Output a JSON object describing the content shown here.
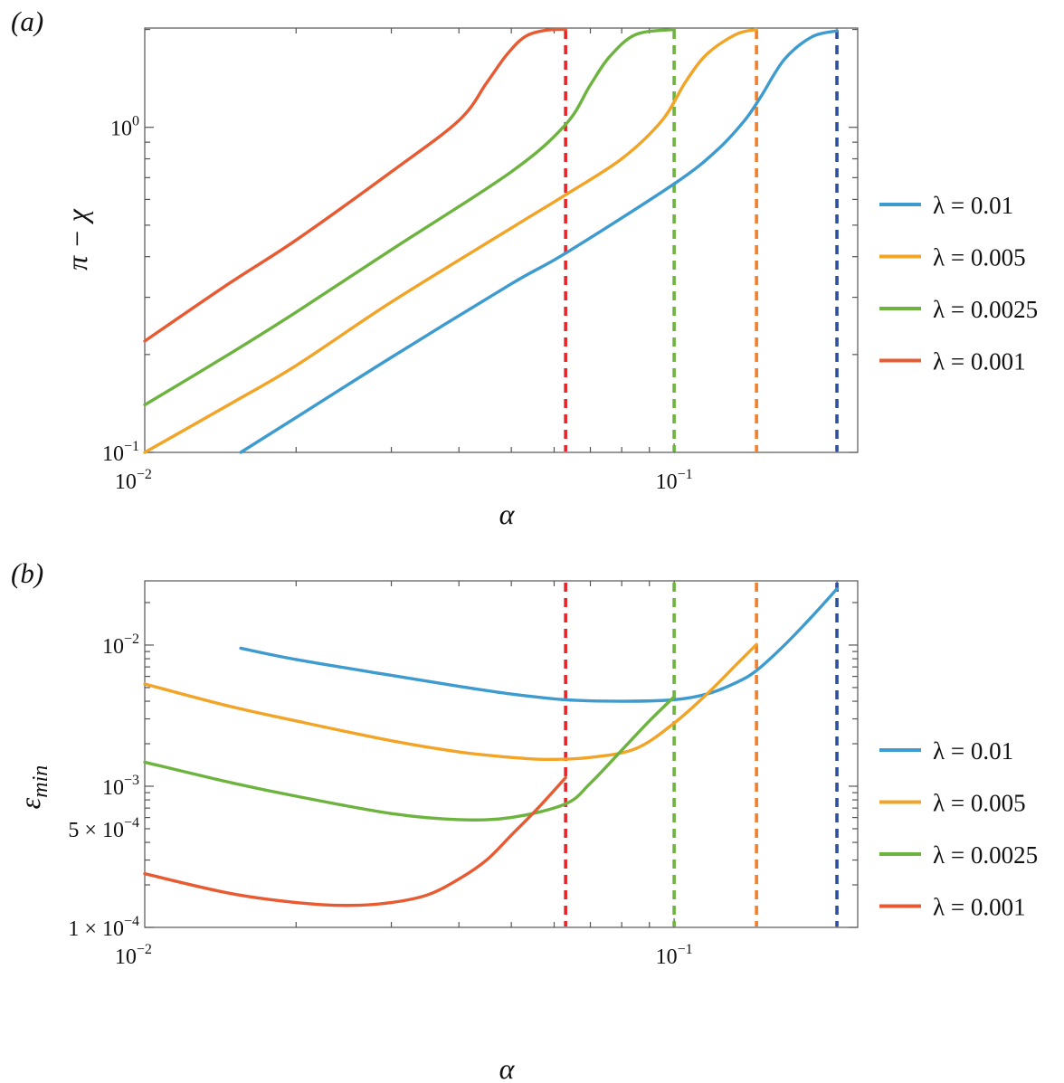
{
  "chart_data": [
    {
      "panel": "(a)",
      "type": "line",
      "xlabel": "α",
      "ylabel": "π − χ",
      "xscale": "log",
      "yscale": "log",
      "xlim": [
        0.0105,
        0.2185
      ],
      "ylim": [
        0.1,
        2.02
      ],
      "xticks": [
        {
          "value": 0.01,
          "label": "10",
          "exp": "−2"
        },
        {
          "value": 0.1,
          "label": "10",
          "exp": "−1"
        }
      ],
      "yticks": [
        {
          "value": 0.1,
          "label": "10",
          "exp": "−1"
        },
        {
          "value": 1.0,
          "label": "10",
          "exp": "0"
        }
      ],
      "legend": "right",
      "series": [
        {
          "name": "λ = 0.01",
          "color": "#3d9bcf",
          "x": [
            0.0158,
            0.02,
            0.03,
            0.05,
            0.063,
            0.1,
            0.12,
            0.135,
            0.145,
            0.16,
            0.18,
            0.2
          ],
          "y": [
            0.1,
            0.128,
            0.196,
            0.33,
            0.41,
            0.67,
            0.85,
            1.05,
            1.25,
            1.62,
            1.9,
            1.98
          ]
        },
        {
          "name": "λ = 0.005",
          "color": "#f2a427",
          "x": [
            0.0105,
            0.015,
            0.02,
            0.03,
            0.05,
            0.063,
            0.08,
            0.095,
            0.105,
            0.115,
            0.13,
            0.142
          ],
          "y": [
            0.1,
            0.14,
            0.185,
            0.29,
            0.49,
            0.62,
            0.8,
            1.05,
            1.38,
            1.68,
            1.93,
            2.0
          ]
        },
        {
          "name": "λ = 0.0025",
          "color": "#6db33f",
          "x": [
            0.0105,
            0.015,
            0.02,
            0.03,
            0.05,
            0.063,
            0.07,
            0.076,
            0.085,
            0.1
          ],
          "y": [
            0.14,
            0.2,
            0.27,
            0.42,
            0.73,
            1.02,
            1.35,
            1.65,
            1.93,
            2.0
          ]
        },
        {
          "name": "λ = 0.001",
          "color": "#e75a32",
          "x": [
            0.0105,
            0.015,
            0.02,
            0.03,
            0.04,
            0.045,
            0.049,
            0.053,
            0.058,
            0.063
          ],
          "y": [
            0.22,
            0.33,
            0.45,
            0.73,
            1.05,
            1.37,
            1.67,
            1.9,
            1.99,
            2.0
          ]
        }
      ],
      "vlines": [
        {
          "x": 0.063,
          "color": "#e6262b"
        },
        {
          "x": 0.1,
          "color": "#6db33f"
        },
        {
          "x": 0.142,
          "color": "#f47f28"
        },
        {
          "x": 0.2,
          "color": "#2e4fa0"
        }
      ]
    },
    {
      "panel": "(b)",
      "type": "line",
      "xlabel": "α",
      "ylabel": "ε_min",
      "xscale": "log",
      "yscale": "log",
      "xlim": [
        0.0105,
        0.2185
      ],
      "ylim": [
        0.0001,
        0.0285
      ],
      "xticks": [
        {
          "value": 0.01,
          "label": "10",
          "exp": "−2"
        },
        {
          "value": 0.1,
          "label": "10",
          "exp": "−1"
        }
      ],
      "yticks": [
        {
          "value": 0.0001,
          "label": "1 × 10",
          "exp": "−4"
        },
        {
          "value": 0.0005,
          "label": "5 × 10",
          "exp": "−4"
        },
        {
          "value": 0.001,
          "label": "10",
          "exp": "−3"
        },
        {
          "value": 0.01,
          "label": "10",
          "exp": "−2"
        }
      ],
      "legend": "right",
      "series": [
        {
          "name": "λ = 0.01",
          "color": "#3d9bcf",
          "x": [
            0.0158,
            0.02,
            0.03,
            0.04,
            0.05,
            0.063,
            0.08,
            0.1,
            0.115,
            0.13,
            0.142,
            0.16,
            0.18,
            0.2
          ],
          "y": [
            0.0095,
            0.0079,
            0.0061,
            0.0051,
            0.0045,
            0.0041,
            0.004,
            0.0041,
            0.0045,
            0.0054,
            0.0066,
            0.01,
            0.016,
            0.025
          ]
        },
        {
          "name": "λ = 0.005",
          "color": "#f2a427",
          "x": [
            0.0105,
            0.015,
            0.02,
            0.03,
            0.04,
            0.05,
            0.058,
            0.07,
            0.085,
            0.1,
            0.115,
            0.13,
            0.142
          ],
          "y": [
            0.0053,
            0.0037,
            0.0029,
            0.0021,
            0.00175,
            0.0016,
            0.00155,
            0.0016,
            0.00185,
            0.0028,
            0.0045,
            0.0072,
            0.0101
          ]
        },
        {
          "name": "λ = 0.0025",
          "color": "#6db33f",
          "x": [
            0.0105,
            0.015,
            0.02,
            0.03,
            0.04,
            0.05,
            0.063,
            0.07,
            0.08,
            0.09,
            0.1
          ],
          "y": [
            0.00148,
            0.00107,
            0.00085,
            0.00064,
            0.00058,
            0.0006,
            0.00075,
            0.00105,
            0.0018,
            0.0029,
            0.0043
          ]
        },
        {
          "name": "λ = 0.001",
          "color": "#e75a32",
          "x": [
            0.0105,
            0.015,
            0.02,
            0.025,
            0.03,
            0.035,
            0.04,
            0.045,
            0.05,
            0.056,
            0.063
          ],
          "y": [
            0.00024,
            0.000175,
            0.00015,
            0.000143,
            0.00015,
            0.00017,
            0.00022,
            0.0003,
            0.00045,
            0.0007,
            0.00115
          ]
        }
      ],
      "vlines": [
        {
          "x": 0.063,
          "color": "#e6262b"
        },
        {
          "x": 0.1,
          "color": "#6db33f"
        },
        {
          "x": 0.142,
          "color": "#f47f28"
        },
        {
          "x": 0.2,
          "color": "#2e4fa0"
        }
      ]
    }
  ]
}
